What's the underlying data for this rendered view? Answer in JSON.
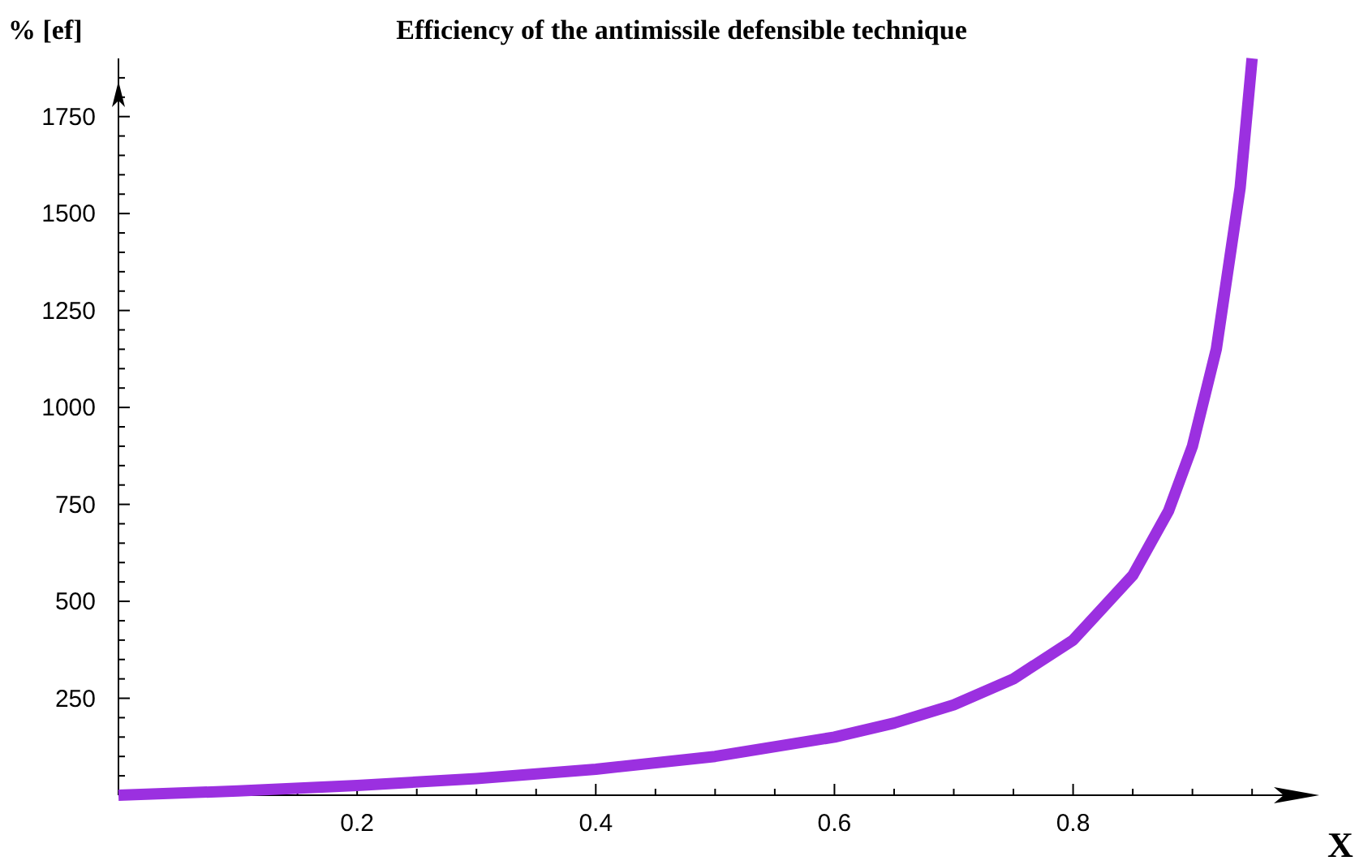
{
  "chart_data": {
    "type": "line",
    "title": "Efficiency of the antimissile defensible technique",
    "xlabel": "X",
    "ylabel": "% [ef]",
    "x": [
      0,
      0.1,
      0.2,
      0.3,
      0.4,
      0.5,
      0.6,
      0.65,
      0.7,
      0.75,
      0.8,
      0.85,
      0.88,
      0.9,
      0.92,
      0.94,
      0.95
    ],
    "series": [
      {
        "color": "#9b30e0",
        "values": [
          0,
          11,
          25,
          43,
          67,
          100,
          150,
          186,
          233,
          300,
          400,
          567,
          733,
          900,
          1150,
          1567,
          1900
        ]
      }
    ],
    "xlim": [
      0,
      0.99
    ],
    "ylim": [
      0,
      1900
    ],
    "xticks": [
      {
        "value": 0.05,
        "label": null
      },
      {
        "value": 0.1,
        "label": null
      },
      {
        "value": 0.15,
        "label": null
      },
      0.2,
      {
        "value": 0.25,
        "label": null
      },
      {
        "value": 0.3,
        "label": null
      },
      {
        "value": 0.35,
        "label": null
      },
      0.4,
      {
        "value": 0.45,
        "label": null
      },
      {
        "value": 0.5,
        "label": null
      },
      {
        "value": 0.55,
        "label": null
      },
      0.6,
      {
        "value": 0.65,
        "label": null
      },
      {
        "value": 0.7,
        "label": null
      },
      {
        "value": 0.75,
        "label": null
      },
      0.8,
      {
        "value": 0.85,
        "label": null
      },
      {
        "value": 0.9,
        "label": null
      },
      {
        "value": 0.95,
        "label": null
      }
    ],
    "yticks": [
      {
        "value": 50,
        "label": null
      },
      {
        "value": 100,
        "label": null
      },
      {
        "value": 150,
        "label": null
      },
      {
        "value": 200,
        "label": null
      },
      250,
      {
        "value": 300,
        "label": null
      },
      {
        "value": 350,
        "label": null
      },
      {
        "value": 400,
        "label": null
      },
      {
        "value": 450,
        "label": null
      },
      500,
      {
        "value": 550,
        "label": null
      },
      {
        "value": 600,
        "label": null
      },
      {
        "value": 650,
        "label": null
      },
      {
        "value": 700,
        "label": null
      },
      750,
      {
        "value": 800,
        "label": null
      },
      {
        "value": 850,
        "label": null
      },
      {
        "value": 900,
        "label": null
      },
      {
        "value": 950,
        "label": null
      },
      1000,
      {
        "value": 1050,
        "label": null
      },
      {
        "value": 1100,
        "label": null
      },
      {
        "value": 1150,
        "label": null
      },
      {
        "value": 1200,
        "label": null
      },
      1250,
      {
        "value": 1300,
        "label": null
      },
      {
        "value": 1350,
        "label": null
      },
      {
        "value": 1400,
        "label": null
      },
      {
        "value": 1450,
        "label": null
      },
      1500,
      {
        "value": 1550,
        "label": null
      },
      {
        "value": 1600,
        "label": null
      },
      {
        "value": 1650,
        "label": null
      },
      {
        "value": 1700,
        "label": null
      },
      1750,
      {
        "value": 1800,
        "label": null
      },
      {
        "value": 1850,
        "label": null
      }
    ],
    "grid": false,
    "marker": "none",
    "line_style": "solid"
  }
}
